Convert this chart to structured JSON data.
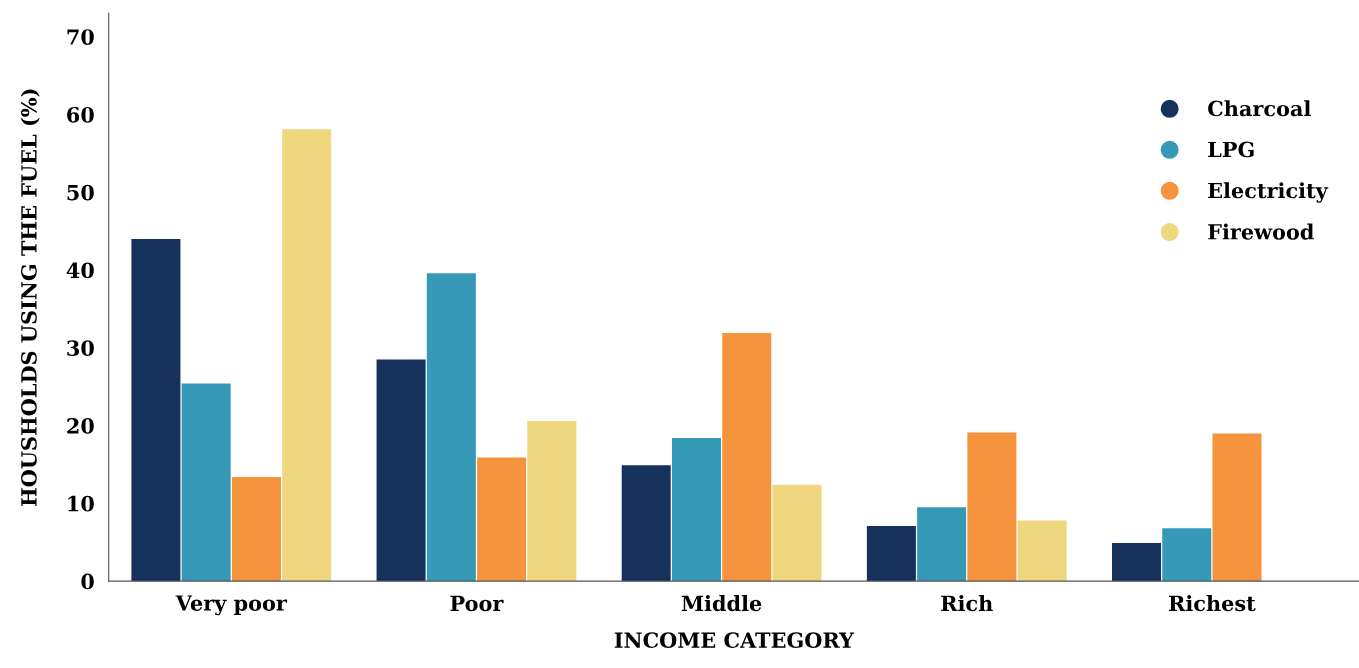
{
  "chart_data": {
    "type": "bar",
    "xlabel": "INCOME CATEGORY",
    "ylabel": "HOUSHOLDS USING THE FUEL (%)",
    "categories": [
      "Very poor",
      "Poor",
      "Middle",
      "Rich",
      "Richest"
    ],
    "series": [
      {
        "name": "Charcoal",
        "color": "#16325c",
        "values": [
          44.0,
          28.5,
          14.9,
          7.1,
          4.9
        ]
      },
      {
        "name": "LPG",
        "color": "#3799b8",
        "values": [
          25.4,
          39.6,
          18.4,
          9.5,
          6.8
        ]
      },
      {
        "name": "Electricity",
        "color": "#f5943c",
        "values": [
          13.4,
          15.9,
          31.9,
          19.1,
          19.0
        ]
      },
      {
        "name": "Firewood",
        "color": "#efd77f",
        "values": [
          58.1,
          20.6,
          12.4,
          7.8,
          null
        ]
      }
    ],
    "ylim": [
      0,
      73
    ],
    "yticks": [
      0,
      10,
      20,
      30,
      40,
      50,
      60,
      70
    ],
    "grid": false,
    "legend": "top right"
  }
}
